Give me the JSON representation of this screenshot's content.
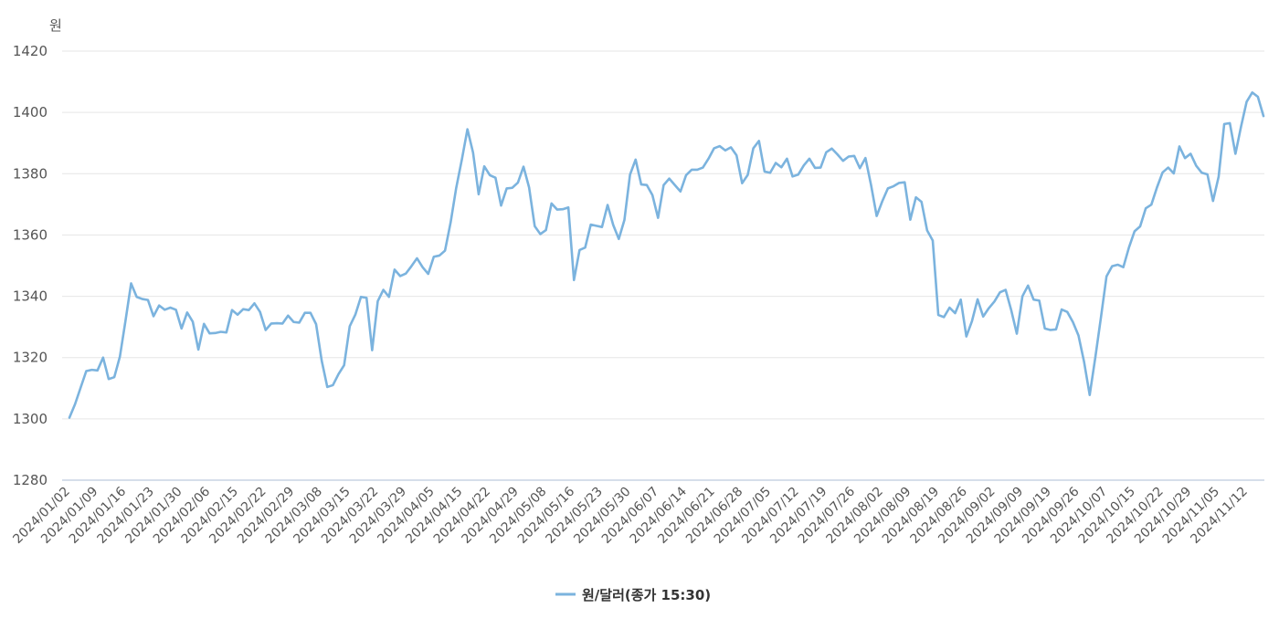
{
  "chart_data": {
    "type": "line",
    "ylabel": "원",
    "ylim": [
      1280,
      1420
    ],
    "yticks": [
      1280,
      1300,
      1320,
      1340,
      1360,
      1380,
      1400,
      1420
    ],
    "grid": true,
    "legend_position": "bottom-center",
    "xtick_labels": [
      "2024/01/02",
      "2024/01/09",
      "2024/01/16",
      "2024/01/23",
      "2024/01/30",
      "2024/02/06",
      "2024/02/15",
      "2024/02/22",
      "2024/02/29",
      "2024/03/08",
      "2024/03/15",
      "2024/03/22",
      "2024/03/29",
      "2024/04/05",
      "2024/04/15",
      "2024/04/22",
      "2024/04/29",
      "2024/05/08",
      "2024/05/16",
      "2024/05/23",
      "2024/05/30",
      "2024/06/07",
      "2024/06/14",
      "2024/06/21",
      "2024/06/28",
      "2024/07/05",
      "2024/07/12",
      "2024/07/19",
      "2024/07/26",
      "2024/08/02",
      "2024/08/09",
      "2024/08/19",
      "2024/08/26",
      "2024/09/02",
      "2024/09/09",
      "2024/09/19",
      "2024/09/26",
      "2024/10/07",
      "2024/10/15",
      "2024/10/22",
      "2024/10/29",
      "2024/11/05",
      "2024/11/12"
    ],
    "series": [
      {
        "name": "원/달러(종가 15:30)",
        "color": "#7bb3de",
        "values": [
          1300.4,
          1304.8,
          1310.2,
          1315.6,
          1316.0,
          1315.8,
          1320.0,
          1313.0,
          1313.6,
          1320.3,
          1332.0,
          1344.2,
          1339.8,
          1339.1,
          1338.8,
          1333.5,
          1337.0,
          1335.6,
          1336.3,
          1335.6,
          1329.5,
          1334.7,
          1331.7,
          1322.6,
          1331.0,
          1327.9,
          1328.0,
          1328.4,
          1328.2,
          1335.5,
          1334.0,
          1335.8,
          1335.5,
          1337.7,
          1334.9,
          1329.0,
          1331.1,
          1331.2,
          1331.1,
          1333.7,
          1331.6,
          1331.4,
          1334.6,
          1334.6,
          1330.9,
          1319.0,
          1310.4,
          1311.0,
          1314.6,
          1317.5,
          1330.2,
          1334.0,
          1339.8,
          1339.5,
          1322.4,
          1338.4,
          1342.1,
          1339.8,
          1348.7,
          1346.6,
          1347.4,
          1349.8,
          1352.4,
          1349.5,
          1347.3,
          1352.9,
          1353.3,
          1354.9,
          1364.1,
          1375.4,
          1384.6,
          1394.5,
          1386.9,
          1373.3,
          1382.4,
          1379.5,
          1378.7,
          1369.6,
          1375.2,
          1375.4,
          1377.1,
          1382.3,
          1375.5,
          1362.9,
          1360.3,
          1361.6,
          1370.3,
          1368.3,
          1368.4,
          1369.0,
          1345.3,
          1355.1,
          1355.9,
          1363.4,
          1363.0,
          1362.6,
          1369.8,
          1363.3,
          1358.7,
          1364.9,
          1379.7,
          1384.6,
          1376.5,
          1376.3,
          1373.0,
          1365.6,
          1376.3,
          1378.4,
          1376.3,
          1374.2,
          1379.5,
          1381.3,
          1381.3,
          1382.0,
          1384.9,
          1388.3,
          1389.0,
          1387.6,
          1388.6,
          1386.0,
          1376.9,
          1379.6,
          1388.3,
          1390.7,
          1380.7,
          1380.3,
          1383.5,
          1382.1,
          1384.9,
          1379.1,
          1379.7,
          1382.7,
          1384.9,
          1381.9,
          1382.0,
          1387.0,
          1388.2,
          1386.3,
          1384.2,
          1385.6,
          1385.8,
          1381.8,
          1385.1,
          1376.3,
          1366.2,
          1371.0,
          1375.2,
          1375.9,
          1377.0,
          1377.2,
          1365.0,
          1372.3,
          1370.8,
          1361.5,
          1358.2,
          1333.9,
          1333.2,
          1336.3,
          1334.5,
          1338.9,
          1326.9,
          1331.9,
          1339.0,
          1333.4,
          1336.1,
          1338.3,
          1341.3,
          1342.1,
          1335.5,
          1327.8,
          1340.0,
          1343.5,
          1338.9,
          1338.6,
          1329.5,
          1329.0,
          1329.2,
          1335.7,
          1334.9,
          1331.6,
          1327.2,
          1318.6,
          1307.8,
          1320.0,
          1333.0,
          1346.5,
          1349.8,
          1350.3,
          1349.5,
          1355.9,
          1361.2,
          1362.8,
          1368.7,
          1369.9,
          1375.5,
          1380.4,
          1382.0,
          1380.1,
          1388.9,
          1385.1,
          1386.5,
          1382.6,
          1380.3,
          1379.8,
          1371.1,
          1379.0,
          1396.2,
          1396.5,
          1386.5,
          1395.4,
          1403.5,
          1406.5,
          1405.1,
          1398.8
        ]
      }
    ]
  },
  "legend": {
    "label": "원/달러(종가 15:30)"
  }
}
